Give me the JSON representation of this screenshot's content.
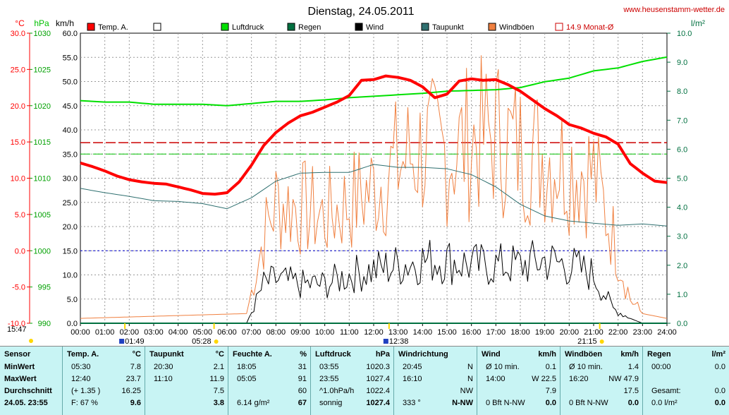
{
  "title": "Dienstag, 24.05.2011",
  "website": "www.heusenstamm-wetter.de",
  "colors": {
    "temp": "#ff0000",
    "pressure": "#00e000",
    "rain": "#007040",
    "wind": "#000000",
    "dewpoint": "#2f7070",
    "gust": "#f08040",
    "month_avg": "#cc0000",
    "bg_panel": "#c8f4f4"
  },
  "axis_units": {
    "temp": "°C",
    "pressure": "hPa",
    "wind": "km/h",
    "rain": "l/m²"
  },
  "legend": [
    "Temp. A.",
    "Luftdruck",
    "Regen",
    "Wind",
    "Taupunkt",
    "Windböen",
    "14.9 Monat-Ø"
  ],
  "chart_data": {
    "type": "line",
    "title": "Dienstag, 24.05.2011",
    "x_ticks": [
      "00:00",
      "01:00",
      "02:00",
      "03:00",
      "04:00",
      "05:00",
      "06:00",
      "07:00",
      "08:00",
      "09:00",
      "10:00",
      "11:00",
      "12:00",
      "13:00",
      "14:00",
      "15:00",
      "16:00",
      "17:00",
      "18:00",
      "19:00",
      "20:00",
      "21:00",
      "22:00",
      "23:00",
      "24:00"
    ],
    "y_temp_ticks": [
      "30.0",
      "25.0",
      "20.0",
      "15.0",
      "10.0",
      "5.0",
      "0.0",
      "-5.0",
      "-10.0"
    ],
    "y_pressure_ticks": [
      "1030",
      "1025",
      "1020",
      "1015",
      "1010",
      "1005",
      "1000",
      "995",
      "990"
    ],
    "y_wind_ticks": [
      "60.0",
      "55.0",
      "50.0",
      "45.0",
      "40.0",
      "35.0",
      "30.0",
      "25.0",
      "20.0",
      "15.0",
      "10.0",
      "5.0",
      "0.0"
    ],
    "y_rain_ticks": [
      "10.0",
      "9.0",
      "8.0",
      "7.0",
      "6.0",
      "5.0",
      "4.0",
      "3.0",
      "2.0",
      "1.0",
      "0.0"
    ],
    "temp_ylim": [
      -10,
      30
    ],
    "wind_ylim": [
      0,
      60
    ],
    "rain_ylim": [
      0,
      10
    ],
    "month_avg_temp": 14.9,
    "series": [
      {
        "name": "Temp. A.",
        "x": [
          0,
          0.5,
          1,
          1.5,
          2,
          2.5,
          3,
          3.5,
          4,
          4.5,
          5,
          5.5,
          6,
          6.5,
          7,
          7.5,
          8,
          8.5,
          9,
          9.5,
          10,
          10.5,
          11,
          11.5,
          12,
          12.5,
          13,
          13.5,
          14,
          14.5,
          15,
          15.5,
          16,
          16.5,
          17,
          17.5,
          18,
          18.5,
          19,
          19.5,
          20,
          20.5,
          21,
          21.5,
          22,
          22.5,
          23,
          23.5,
          24
        ],
        "values": [
          12.1,
          11.6,
          11.0,
          10.3,
          9.8,
          9.5,
          9.3,
          9.2,
          8.8,
          8.4,
          7.9,
          7.8,
          8.0,
          9.5,
          11.8,
          14.5,
          16.3,
          17.6,
          18.6,
          19.1,
          19.8,
          20.5,
          21.4,
          23.5,
          23.6,
          24.1,
          23.9,
          23.5,
          22.6,
          21.1,
          21.6,
          23.4,
          23.7,
          23.5,
          23.6,
          22.9,
          22.0,
          20.8,
          19.6,
          18.6,
          17.4,
          16.9,
          16.2,
          15.7,
          14.7,
          12.0,
          10.7,
          9.6,
          9.4
        ]
      },
      {
        "name": "Luftdruck",
        "x": [
          0,
          1,
          2,
          3,
          4,
          5,
          6,
          7,
          8,
          9,
          10,
          11,
          12,
          13,
          14,
          15,
          16,
          17,
          18,
          19,
          20,
          21,
          22,
          23,
          24
        ],
        "values": [
          1020.7,
          1020.5,
          1020.5,
          1020.2,
          1020.2,
          1020.2,
          1020.0,
          1020.3,
          1020.6,
          1020.6,
          1020.8,
          1021.1,
          1021.3,
          1021.5,
          1021.7,
          1022.0,
          1022.1,
          1022.2,
          1022.5,
          1023.3,
          1023.8,
          1024.8,
          1025.2,
          1026.1,
          1026.7
        ]
      },
      {
        "name": "Taupunkt",
        "x": [
          0,
          1,
          2,
          3,
          4,
          5,
          6,
          7,
          8,
          9,
          10,
          11,
          12,
          13,
          14,
          15,
          16,
          17,
          18,
          19,
          20,
          21,
          22,
          23,
          24
        ],
        "values": [
          8.6,
          8.0,
          7.5,
          6.9,
          6.8,
          6.5,
          5.8,
          7.3,
          9.6,
          10.7,
          10.8,
          10.8,
          11.9,
          11.5,
          11.5,
          11.3,
          10.5,
          8.8,
          6.4,
          4.8,
          4.1,
          3.8,
          3.5,
          3.7,
          3.4
        ]
      },
      {
        "name": "Wind",
        "x": [
          0,
          6.8,
          7.5,
          8,
          9,
          10,
          11,
          12,
          13,
          14,
          15,
          16,
          17,
          18,
          19,
          20,
          21,
          21.8,
          22.5,
          23,
          24
        ],
        "values": [
          0,
          0,
          8,
          9,
          8,
          8,
          10,
          11,
          12,
          13,
          13,
          12,
          12,
          12,
          13,
          12,
          10,
          3,
          1,
          0,
          0
        ]
      },
      {
        "name": "Windböen",
        "x": [
          0,
          6.8,
          7.5,
          8,
          9,
          10,
          11,
          12,
          13,
          14,
          15,
          16,
          17,
          18,
          19,
          20,
          21,
          21.8,
          22.5,
          23,
          24
        ],
        "values": [
          1,
          2,
          18,
          25,
          24,
          22,
          25,
          28,
          33,
          36,
          35,
          38,
          39,
          36,
          35,
          33,
          31,
          18,
          5,
          2,
          1
        ]
      },
      {
        "name": "Regen",
        "x": [
          0,
          24
        ],
        "values": [
          0,
          0
        ]
      }
    ]
  },
  "markers": {
    "start": "15:47",
    "tmin": "01:49",
    "sunrise": "05:28",
    "tmax": "12:38",
    "sunset": "21:15"
  },
  "panel": {
    "sensor": {
      "head": "Sensor",
      "rows": [
        "MinWert",
        "MaxWert",
        "Durchschnitt",
        "24.05. 23:55"
      ]
    },
    "temp": {
      "head": "Temp. A.",
      "unit": "°C",
      "rows": [
        [
          "05:30",
          "7.8"
        ],
        [
          "12:40",
          "23.7"
        ],
        [
          "(+ 1.35 )",
          "16.25"
        ],
        [
          "F: 67 %",
          "9.6"
        ]
      ]
    },
    "dew": {
      "head": "Taupunkt",
      "unit": "°C",
      "rows": [
        [
          "20:30",
          "2.1"
        ],
        [
          "11:10",
          "11.9"
        ],
        [
          "",
          "7.5"
        ],
        [
          "",
          "3.8"
        ]
      ]
    },
    "hum": {
      "head": "Feuchte A.",
      "unit": "%",
      "rows": [
        [
          "18:05",
          "31"
        ],
        [
          "05:05",
          "91"
        ],
        [
          "",
          "60"
        ],
        [
          "6.14 g/m²",
          "67"
        ]
      ]
    },
    "press": {
      "head": "Luftdruck",
      "unit": "hPa",
      "rows": [
        [
          "03:55",
          "1020.3"
        ],
        [
          "23:55",
          "1027.4"
        ],
        [
          "^1.0hPa/h",
          "1022.4"
        ],
        [
          "sonnig",
          "1027.4"
        ]
      ]
    },
    "dir": {
      "head": "Windrichtung",
      "rows": [
        [
          "20:45",
          "N"
        ],
        [
          "16:10",
          "N"
        ],
        [
          "",
          "NW"
        ],
        [
          "333 °",
          "N-NW"
        ]
      ]
    },
    "wind": {
      "head": "Wind",
      "unit": "km/h",
      "rows": [
        [
          "Ø 10 min.",
          "0.1"
        ],
        [
          "14:00",
          "W 22.5"
        ],
        [
          "",
          "7.9"
        ],
        [
          "0 Bft N-NW",
          "0.0"
        ]
      ]
    },
    "gust": {
      "head": "Windböen",
      "unit": "km/h",
      "rows": [
        [
          "Ø 10 min.",
          "1.4"
        ],
        [
          "16:20",
          "NW 47.9"
        ],
        [
          "",
          "17.5"
        ],
        [
          "0 Bft N-NW",
          "0.0"
        ]
      ]
    },
    "rain": {
      "head": "Regen",
      "unit": "l/m²",
      "rows": [
        [
          "00:00",
          "0.0"
        ],
        [
          "Gesamt:",
          "0.0"
        ],
        [
          "0.0 l/m²",
          "0.0"
        ]
      ]
    }
  }
}
